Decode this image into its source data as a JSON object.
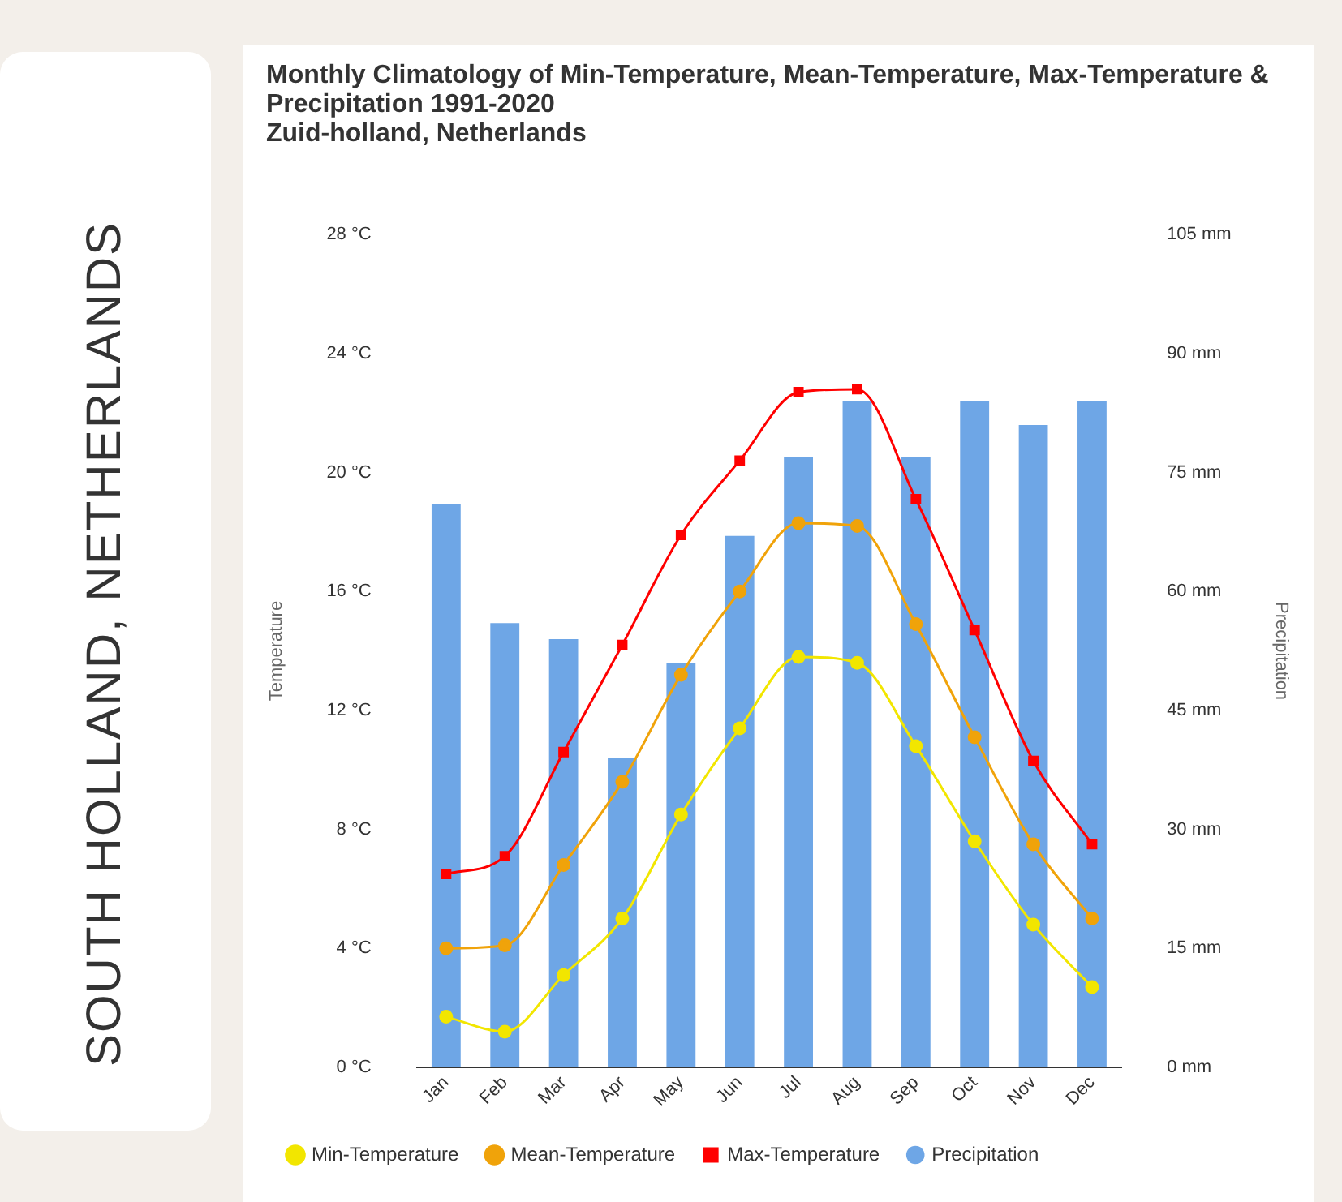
{
  "chart_data": {
    "type": "line",
    "title": "Monthly Climatology of Min-Temperature, Mean-Temperature, Max-Temperature & Precipitation 1991-2020",
    "subtitle": "Zuid-holland, Netherlands",
    "annotations": [
      "SOUTH HOLLAND, NETHERLANDS"
    ],
    "ylabel": "Temperature",
    "y2label": "Precipitation",
    "categories": [
      "Jan",
      "Feb",
      "Mar",
      "Apr",
      "May",
      "Jun",
      "Jul",
      "Aug",
      "Sep",
      "Oct",
      "Nov",
      "Dec"
    ],
    "series": [
      {
        "name": "Min-Temperature",
        "color": "#f2e600",
        "marker": "circle",
        "values": [
          1.7,
          1.2,
          3.1,
          5.0,
          8.5,
          11.4,
          13.8,
          13.6,
          10.8,
          7.6,
          4.8,
          2.7
        ]
      },
      {
        "name": "Mean-Temperature",
        "color": "#f0a30a",
        "marker": "circle",
        "values": [
          4.0,
          4.1,
          6.8,
          9.6,
          13.2,
          16.0,
          18.3,
          18.2,
          14.9,
          11.1,
          7.5,
          5.0
        ]
      },
      {
        "name": "Max-Temperature",
        "color": "#ff0000",
        "marker": "square",
        "values": [
          6.5,
          7.1,
          10.6,
          14.2,
          17.9,
          20.4,
          22.7,
          22.8,
          19.1,
          14.7,
          10.3,
          7.5
        ]
      },
      {
        "name": "Precipitation",
        "type": "bar",
        "axis": "y2",
        "color": "#6ea6e6",
        "marker": "circle",
        "values": [
          71,
          56,
          54,
          39,
          51,
          67,
          77,
          84,
          77,
          84,
          81,
          84
        ]
      }
    ],
    "ylim": [
      0,
      28
    ],
    "yticks": [
      {
        "value": 0,
        "label": "0 °C"
      },
      {
        "value": 4,
        "label": "4 °C"
      },
      {
        "value": 8,
        "label": "8 °C"
      },
      {
        "value": 12,
        "label": "12 °C"
      },
      {
        "value": 16,
        "label": "16 °C"
      },
      {
        "value": 20,
        "label": "20 °C"
      },
      {
        "value": 24,
        "label": "24 °C"
      },
      {
        "value": 28,
        "label": "28 °C"
      }
    ],
    "y2lim": [
      0,
      105
    ],
    "y2ticks": [
      {
        "value": 0,
        "label": "0 mm"
      },
      {
        "value": 15,
        "label": "15 mm"
      },
      {
        "value": 30,
        "label": "30 mm"
      },
      {
        "value": 45,
        "label": "45 mm"
      },
      {
        "value": 60,
        "label": "60 mm"
      },
      {
        "value": 75,
        "label": "75 mm"
      },
      {
        "value": 90,
        "label": "90 mm"
      },
      {
        "value": 105,
        "label": "105 mm"
      }
    ],
    "grid": false,
    "legend": "bottom"
  }
}
